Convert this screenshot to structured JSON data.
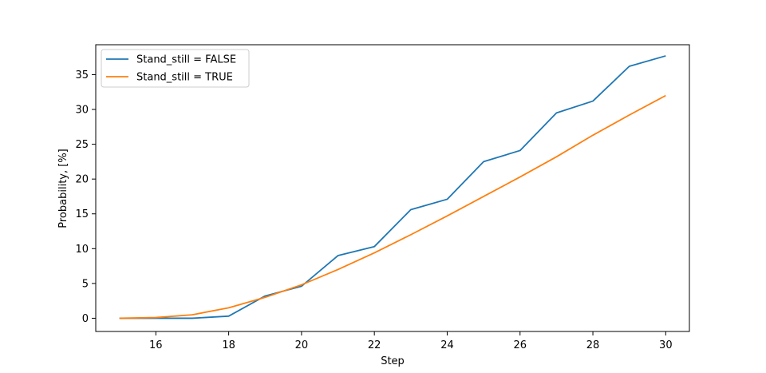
{
  "chart_data": {
    "type": "line",
    "title": "",
    "xlabel": "Step",
    "ylabel": "Probability, [%]",
    "xlim": [
      14.35,
      30.65
    ],
    "ylim": [
      -1.9,
      39.3
    ],
    "x_ticks": [
      16,
      18,
      20,
      22,
      24,
      26,
      28,
      30
    ],
    "y_ticks": [
      0,
      5,
      10,
      15,
      20,
      25,
      30,
      35
    ],
    "grid": false,
    "legend": {
      "placement": "top-left"
    },
    "x": [
      15,
      16,
      17,
      18,
      19,
      20,
      21,
      22,
      23,
      24,
      25,
      26,
      27,
      28,
      29,
      30
    ],
    "series": [
      {
        "name": "Stand_still = FALSE",
        "color": "#1f77b4",
        "values": [
          0,
          0,
          0,
          0.3,
          3.2,
          4.6,
          9.0,
          10.3,
          15.6,
          17.1,
          22.5,
          24.1,
          29.5,
          31.2,
          36.2,
          37.7
        ]
      },
      {
        "name": "Stand_still = TRUE",
        "color": "#ff7f0e",
        "values": [
          0,
          0.1,
          0.5,
          1.5,
          3.0,
          4.8,
          7.0,
          9.4,
          12.0,
          14.7,
          17.5,
          20.3,
          23.2,
          26.3,
          29.2,
          32.0
        ]
      }
    ]
  }
}
